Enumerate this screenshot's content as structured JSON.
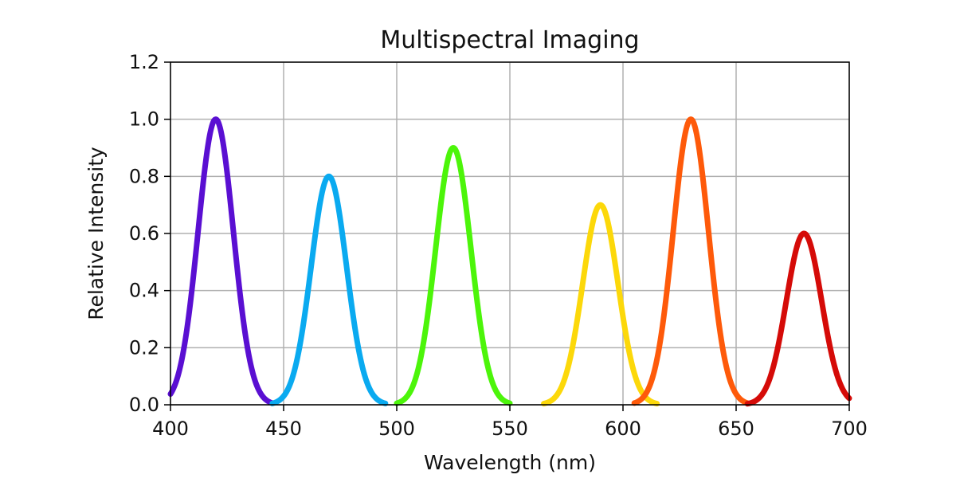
{
  "chart_data": {
    "type": "line",
    "title": "Multispectral Imaging",
    "xlabel": "Wavelength (nm)",
    "ylabel": "Relative Intensity",
    "xlim": [
      400,
      700
    ],
    "ylim": [
      0,
      1.2
    ],
    "x_ticks": [
      "400",
      "450",
      "500",
      "550",
      "600",
      "650",
      "700"
    ],
    "y_ticks": [
      "0.0",
      "0.2",
      "0.4",
      "0.6",
      "0.8",
      "1.0",
      "1.2"
    ],
    "grid": true,
    "legend": "none",
    "series": [
      {
        "center": 420,
        "peak": 1.0,
        "range": [
          400,
          445
        ],
        "color": "#5a0fd2"
      },
      {
        "center": 470,
        "peak": 0.8,
        "range": [
          445,
          495
        ],
        "color": "#0aaaf0"
      },
      {
        "center": 525,
        "peak": 0.9,
        "range": [
          500,
          550
        ],
        "color": "#4cf50a"
      },
      {
        "center": 590,
        "peak": 0.7,
        "range": [
          565,
          615
        ],
        "color": "#fcd80a"
      },
      {
        "center": 630,
        "peak": 1.0,
        "range": [
          605,
          655
        ],
        "color": "#fe5a0a"
      },
      {
        "center": 680,
        "peak": 0.6,
        "range": [
          655,
          700
        ],
        "color": "#d50b08"
      }
    ]
  }
}
